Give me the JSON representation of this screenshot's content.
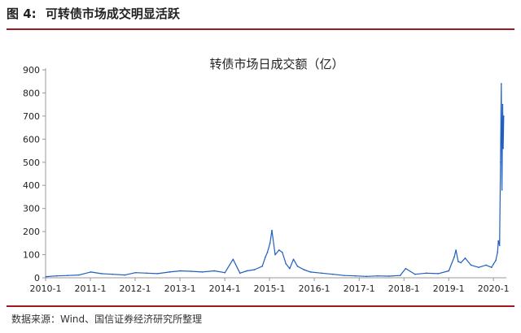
{
  "figure": {
    "number": "图 4:",
    "title": "可转债市场成交明显活跃",
    "source": "数据来源：Wind、国信证券经济研究所整理"
  },
  "colors": {
    "line": "#1f5fbf",
    "rule": "#9b1b1b",
    "axis": "#999999"
  },
  "chart_data": {
    "type": "line",
    "title": "转债市场日成交额（亿）",
    "xlabel": "",
    "ylabel": "",
    "ylim": [
      0,
      900
    ],
    "xlim": [
      "2010-01-01",
      "2020-04-15"
    ],
    "yticks": [
      "0",
      "100",
      "200",
      "300",
      "400",
      "500",
      "600",
      "700",
      "800",
      "900"
    ],
    "xticks": [
      "2010-1",
      "2011-1",
      "2012-1",
      "2013-1",
      "2014-1",
      "2015-1",
      "2016-1",
      "2017-1",
      "2018-1",
      "2019-1",
      "2020-1"
    ],
    "grid": false,
    "legend": "none",
    "series": [
      {
        "x": [
          "2010-01-04",
          "2010-04-01",
          "2010-07-01",
          "2010-10-01",
          "2011-01-04",
          "2011-04-01",
          "2011-07-01",
          "2011-10-10",
          "2012-01-04",
          "2012-04-05",
          "2012-07-02",
          "2012-10-08",
          "2013-01-04",
          "2013-04-01",
          "2013-07-01",
          "2013-10-08",
          "2014-01-02",
          "2014-03-10",
          "2014-05-05",
          "2014-07-01",
          "2014-09-01",
          "2014-11-03",
          "2014-11-28",
          "2014-12-15",
          "2015-01-05",
          "2015-01-20",
          "2015-02-16",
          "2015-03-20",
          "2015-04-15",
          "2015-05-15",
          "2015-06-15",
          "2015-07-15",
          "2015-08-17",
          "2015-10-08",
          "2015-12-01",
          "2016-03-01",
          "2016-06-01",
          "2016-09-01",
          "2016-12-01",
          "2017-03-01",
          "2017-06-01",
          "2017-09-01",
          "2017-12-01",
          "2018-01-15",
          "2018-04-02",
          "2018-07-02",
          "2018-10-08",
          "2019-01-02",
          "2019-02-15",
          "2019-03-01",
          "2019-03-20",
          "2019-04-10",
          "2019-05-15",
          "2019-07-01",
          "2019-09-02",
          "2019-11-01",
          "2019-12-16",
          "2020-01-02",
          "2020-01-20",
          "2020-02-03",
          "2020-02-10",
          "2020-02-20",
          "2020-02-27",
          "2020-03-05",
          "2020-03-10",
          "2020-03-16",
          "2020-03-20",
          "2020-03-25"
        ],
        "values": [
          5,
          8,
          10,
          12,
          25,
          18,
          15,
          12,
          22,
          20,
          18,
          25,
          30,
          28,
          25,
          30,
          22,
          80,
          20,
          30,
          35,
          50,
          90,
          110,
          150,
          205,
          100,
          120,
          110,
          60,
          40,
          80,
          50,
          35,
          25,
          20,
          15,
          10,
          8,
          6,
          8,
          7,
          10,
          40,
          15,
          20,
          18,
          30,
          90,
          120,
          70,
          65,
          85,
          55,
          45,
          55,
          45,
          60,
          75,
          110,
          160,
          140,
          500,
          840,
          380,
          750,
          560,
          700
        ]
      }
    ]
  }
}
